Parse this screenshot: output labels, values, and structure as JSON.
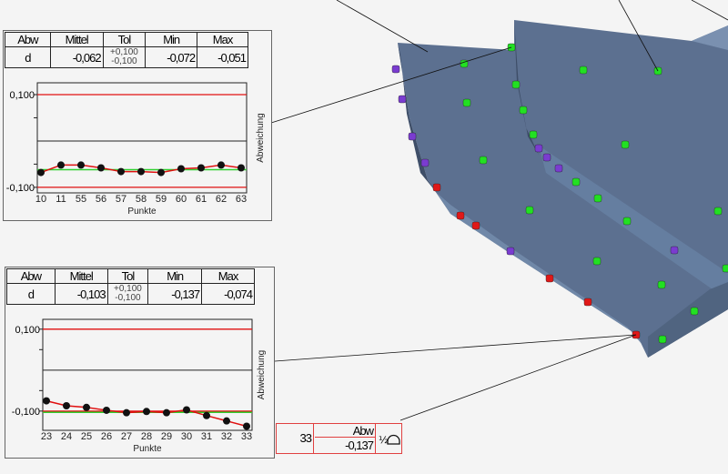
{
  "panels": [
    {
      "headers": {
        "abw": "Abw",
        "mittel": "Mittel",
        "tol": "Tol",
        "min": "Min",
        "max": "Max"
      },
      "row": {
        "abw": "d",
        "mittel": "-0,062",
        "tol_plus": "+0,100",
        "tol_minus": "-0,100",
        "min": "-0,072",
        "max": "-0,051"
      }
    },
    {
      "headers": {
        "abw": "Abw",
        "mittel": "Mittel",
        "tol": "Tol",
        "min": "Min",
        "max": "Max"
      },
      "row": {
        "abw": "d",
        "mittel": "-0,103",
        "tol_plus": "+0,100",
        "tol_minus": "-0,100",
        "min": "-0,137",
        "max": "-0,074"
      }
    }
  ],
  "point_label": {
    "point": "33",
    "header": "Abw",
    "value": "-0,137",
    "icon": "half-dome-icon"
  },
  "colors": {
    "model": "#5c7090",
    "green": "#22e022",
    "purple": "#7a3cd0",
    "red": "#e01818",
    "tolerance": "#e01010",
    "mean": "#30d030"
  },
  "chart_data": [
    {
      "type": "line",
      "xlabel": "Punkte",
      "ylabel": "Abweichung",
      "categories": [
        "10",
        "11",
        "55",
        "56",
        "57",
        "58",
        "59",
        "60",
        "61",
        "62",
        "63"
      ],
      "values": [
        -0.068,
        -0.052,
        -0.052,
        -0.058,
        -0.066,
        -0.066,
        -0.068,
        -0.06,
        -0.058,
        -0.052,
        -0.058
      ],
      "ytick_labels": [
        {
          "value": 0.1,
          "label": "0,100"
        },
        {
          "value": -0.1,
          "label": "-0,100"
        }
      ],
      "minor_ticks": [
        0.05,
        -0.05
      ],
      "tolerance": [
        0.1,
        -0.1
      ],
      "zero": 0,
      "mean": -0.062,
      "ylim": [
        -0.112,
        0.1255
      ]
    },
    {
      "type": "line",
      "xlabel": "Punkte",
      "ylabel": "Abweichung",
      "categories": [
        "23",
        "24",
        "25",
        "26",
        "27",
        "28",
        "29",
        "30",
        "31",
        "32",
        "33"
      ],
      "values": [
        -0.075,
        -0.087,
        -0.091,
        -0.098,
        -0.104,
        -0.101,
        -0.104,
        -0.097,
        -0.111,
        -0.124,
        -0.137
      ],
      "ytick_labels": [
        {
          "value": 0.1,
          "label": "0,100"
        },
        {
          "value": -0.1,
          "label": "-0,100"
        }
      ],
      "minor_ticks": [
        0.05,
        -0.05
      ],
      "tolerance": [
        0.1,
        -0.1
      ],
      "zero": 0,
      "mean": -0.103,
      "ylim": [
        -0.147,
        0.124
      ]
    }
  ]
}
